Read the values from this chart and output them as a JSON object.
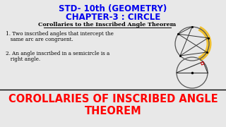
{
  "title_line1": "STD- 10th (GEOMETRY)",
  "title_line2": "CHAPTER-3 : CIRCLE",
  "subtitle": "Corollaries to the Inscribed Angle Theorem",
  "item1_a": "1. Two inscribed angles that intercept the",
  "item1_b": "   same arc are congruent.",
  "item2_a": "2. An angle inscribed in a semicircle is a",
  "item2_b": "   right angle.",
  "footer_line1": "COROLLARIES OF INSCRIBED ANGLE",
  "footer_line2": "THEOREM",
  "title_color": "#0000ee",
  "subtitle_color": "#000000",
  "body_color": "#000000",
  "footer_color": "#ff0000",
  "bg_color": "#e8e8e8",
  "yellow_color": "#f0c030",
  "red_sq_color": "#cc0000",
  "line_color": "#333333",
  "circle_edge": "#555555"
}
